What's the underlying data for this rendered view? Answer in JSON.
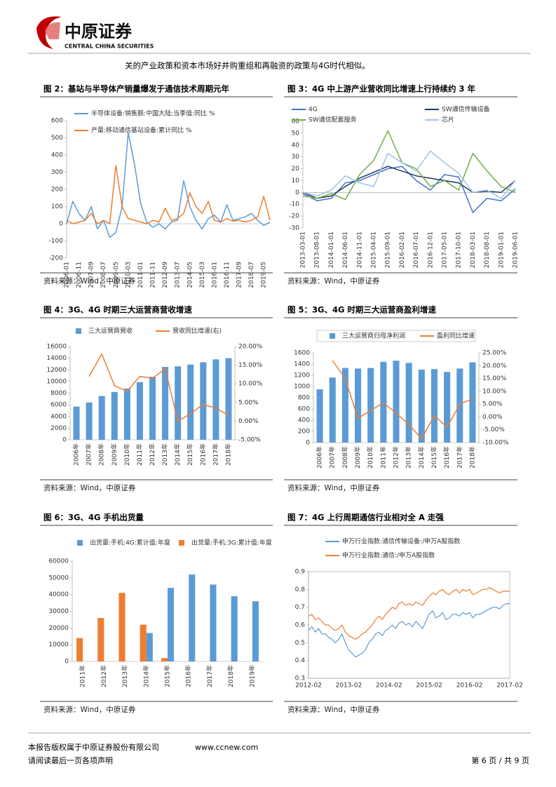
{
  "header": {
    "company": "中原证券",
    "company_en": "CENTRAL CHINA SECURITIES"
  },
  "intro": "关的产业政策和资本市场好并购重组和再融资的政策与4G时代相似。",
  "chart_data": [
    {
      "type": "line",
      "title": "图 2：基站与半导体产销量爆发于通信技术周期元年",
      "source": "资料来源：Wind，中原证券",
      "categories": [
        "2006-01",
        null,
        "2006-11",
        null,
        "2007-09",
        null,
        "2008-07",
        null,
        "2009-05",
        null,
        "2010-03",
        null,
        "2011-01",
        null,
        "2011-11",
        null,
        "2012-09",
        null,
        "2013-07",
        null,
        "2014-05",
        null,
        "2015-03",
        null,
        "2016-01",
        null,
        "2016-11",
        null,
        "2017-09",
        null,
        "2018-07",
        null,
        "2019-05",
        null
      ],
      "series": [
        {
          "name": "半导体设备:销售额:中国大陆:当季值:同比 %",
          "color": "#5b9bd5",
          "values": [
            0,
            130,
            60,
            20,
            100,
            -30,
            20,
            -80,
            -50,
            100,
            530,
            350,
            120,
            10,
            -20,
            0,
            -30,
            10,
            20,
            250,
            100,
            20,
            -30,
            30,
            50,
            10,
            110,
            20,
            30,
            40,
            60,
            20,
            -10,
            10
          ]
        },
        {
          "name": "产量:移动通信基站设备:累计同比 %",
          "color": "#ed7d31",
          "values": [
            20,
            0,
            10,
            20,
            60,
            0,
            20,
            0,
            340,
            100,
            30,
            20,
            10,
            0,
            20,
            10,
            90,
            20,
            30,
            60,
            180,
            100,
            60,
            130,
            20,
            10,
            30,
            15,
            20,
            10,
            20,
            40,
            160,
            20
          ]
        }
      ],
      "ylim": [
        -200,
        600
      ],
      "yticks": [
        -200,
        -100,
        0,
        100,
        200,
        300,
        400,
        500,
        600
      ]
    },
    {
      "type": "line",
      "title": "图 3：4G 中上游产业营收同比增速上行持续约 3 年",
      "source": "资料来源：Wind，中原证券",
      "categories": [
        "2013-03-01",
        "2013-08-01",
        "2014-01-01",
        "2014-06-01",
        "2014-11-01",
        "2015-04-01",
        "2015-09-01",
        "2016-02-01",
        "2016-07-01",
        "2016-12-01",
        "2017-05-01",
        "2017-10-01",
        "2018-03-01",
        "2018-08-01",
        "2019-01-01",
        "2019-06-01"
      ],
      "series": [
        {
          "name": "4G",
          "color": "#4472c4",
          "values": [
            -1,
            -7,
            -5,
            8,
            10,
            15,
            20,
            22,
            10,
            2,
            15,
            13,
            -17,
            -5,
            -7,
            3
          ]
        },
        {
          "name": "SW通信传输设备",
          "color": "#1f3864",
          "values": [
            0,
            -5,
            -3,
            5,
            12,
            17,
            22,
            18,
            14,
            12,
            10,
            8,
            0,
            1,
            0,
            10
          ]
        },
        {
          "name": "SW通信配套服务",
          "color": "#70ad47",
          "values": [
            -3,
            -5,
            -1,
            -6,
            15,
            27,
            52,
            25,
            20,
            5,
            10,
            2,
            33,
            18,
            5,
            0
          ]
        },
        {
          "name": "芯片",
          "color": "#9dc3e6",
          "values": [
            0,
            -3,
            2,
            14,
            8,
            5,
            33,
            25,
            18,
            35,
            25,
            16,
            0,
            2,
            -5,
            10
          ]
        }
      ],
      "ylim": [
        -30,
        60
      ],
      "yticks": [
        -30,
        -20,
        -10,
        0,
        10,
        20,
        30,
        40,
        50,
        60
      ]
    },
    {
      "type": "bar",
      "title": "图 4：3G、4G 时期三大运营商营收增速",
      "source": "资料来源：Wind，中原证券",
      "categories": [
        "2006年",
        "2007年",
        "2008年",
        "2009年",
        "2010年",
        "2011年",
        "2012年",
        "2013年",
        "2014年",
        "2015年",
        "2016年",
        "2017年",
        "2018年"
      ],
      "series": [
        {
          "name": "三大运营商营收",
          "color": "#5b9bd5",
          "values": [
            5700,
            6400,
            7500,
            8200,
            8800,
            9900,
            10800,
            12500,
            12600,
            12900,
            13300,
            13800,
            14000
          ]
        },
        {
          "name": "营收同比增速(右)",
          "color": "#ed7d31",
          "type": "line",
          "axis": "y2",
          "values": [
            null,
            12,
            18,
            9.5,
            8,
            12,
            11.5,
            14,
            0,
            2,
            4.5,
            3.5,
            1.5
          ]
        }
      ],
      "ylim": [
        0,
        16000
      ],
      "yticks": [
        0,
        2000,
        4000,
        6000,
        8000,
        10000,
        12000,
        14000,
        16000
      ],
      "y2lim": [
        -5,
        20
      ],
      "y2ticks": [
        {
          "value": -5,
          "label": "-5.00%"
        },
        {
          "value": 0,
          "label": "0.00%"
        },
        {
          "value": 5,
          "label": "5.00%"
        },
        {
          "value": 10,
          "label": "10.00%"
        },
        {
          "value": 15,
          "label": "15.00%"
        },
        {
          "value": 20,
          "label": "20.00%"
        }
      ]
    },
    {
      "type": "bar",
      "title": "图 5：3G、4G 时期三大运营商盈利增速",
      "source": "资料来源：Wind，中原证券",
      "categories": [
        "2006年",
        "2007年",
        "2008年",
        "2009年",
        "2010年",
        "2011年",
        "2012年",
        "2013年",
        "2014年",
        "2015年",
        "2016年",
        "2017年",
        "2018年"
      ],
      "series": [
        {
          "name": "三大运营商归母净利润",
          "color": "#5b9bd5",
          "values": [
            950,
            1160,
            1330,
            1320,
            1330,
            1440,
            1460,
            1420,
            1300,
            1310,
            1260,
            1320,
            1430
          ]
        },
        {
          "name": "盈利同比增速",
          "color": "#ed7d31",
          "type": "line",
          "axis": "y2",
          "values": [
            null,
            22,
            15,
            -0.5,
            2.5,
            5.5,
            1.5,
            -3,
            -8.5,
            0.5,
            -4,
            5,
            7
          ]
        }
      ],
      "ylim": [
        0,
        1600
      ],
      "yticks": [
        0,
        200,
        400,
        600,
        800,
        1000,
        1200,
        1400,
        1600
      ],
      "y2lim": [
        -10,
        25
      ],
      "y2ticks": [
        {
          "value": -10,
          "label": "-10.00%"
        },
        {
          "value": -5,
          "label": "-5.00%"
        },
        {
          "value": 0,
          "label": "0.00%"
        },
        {
          "value": 5,
          "label": "5.00%"
        },
        {
          "value": 10,
          "label": "10.00%"
        },
        {
          "value": 15,
          "label": "15.00%"
        },
        {
          "value": 20,
          "label": "20.00%"
        },
        {
          "value": 25,
          "label": "25.00%"
        }
      ]
    },
    {
      "type": "bar",
      "title": "图 6：3G、4G 手机出货量",
      "source": "资料来源：Wind，中原证券",
      "categories": [
        "2011年",
        "2012年",
        "2013年",
        "2014年",
        "2015年",
        "2016年",
        "2017年",
        "2018年",
        "2019年"
      ],
      "series": [
        {
          "name": "出货量:手机:4G:累计值:年度",
          "color": "#5b9bd5",
          "values": [
            null,
            null,
            null,
            17000,
            44000,
            52000,
            46000,
            39000,
            36000
          ]
        },
        {
          "name": "出货量:手机:3G:累计值:年度",
          "color": "#ed7d31",
          "values": [
            14000,
            26000,
            41000,
            22000,
            2000,
            null,
            null,
            null,
            null
          ]
        }
      ],
      "ylim": [
        0,
        60000
      ],
      "yticks": [
        0,
        10000,
        20000,
        30000,
        40000,
        50000,
        60000
      ]
    },
    {
      "type": "line",
      "title": "图 7：4G 上行周期通信行业相对全 A 走强",
      "source": "资料来源：Wind，中原证券",
      "categories": [
        "2012-02",
        null,
        null,
        null,
        null,
        null,
        null,
        null,
        null,
        null,
        null,
        null,
        "2013-02",
        null,
        null,
        null,
        null,
        null,
        null,
        null,
        null,
        null,
        null,
        null,
        "2014-02",
        null,
        null,
        null,
        null,
        null,
        null,
        null,
        null,
        null,
        null,
        null,
        "2015-02",
        null,
        null,
        null,
        null,
        null,
        null,
        null,
        null,
        null,
        null,
        null,
        "2016-02",
        null,
        null,
        null,
        null,
        null,
        null,
        null,
        null,
        null,
        null,
        null,
        "2017-02"
      ],
      "series": [
        {
          "name": "申万行业指数:通信传输设备:/申万A股指数",
          "color": "#5b9bd5",
          "values": [
            0.57,
            0.59,
            0.56,
            0.58,
            0.55,
            0.55,
            0.53,
            0.52,
            0.5,
            0.52,
            0.55,
            0.5,
            0.46,
            0.44,
            0.42,
            0.43,
            0.44,
            0.46,
            0.5,
            0.52,
            0.55,
            0.56,
            0.54,
            0.57,
            0.58,
            0.6,
            0.58,
            0.61,
            0.62,
            0.6,
            0.61,
            0.59,
            0.62,
            0.6,
            0.58,
            0.62,
            0.66,
            0.68,
            0.64,
            0.65,
            0.67,
            0.63,
            0.64,
            0.66,
            0.66,
            0.65,
            0.67,
            0.66,
            0.67,
            0.64,
            0.66,
            0.66,
            0.67,
            0.68,
            0.69,
            0.7,
            0.7,
            0.69,
            0.71,
            0.72,
            0.72
          ]
        },
        {
          "name": "申万行业指数:通信:/申万A股指数",
          "color": "#ed7d31",
          "values": [
            0.65,
            0.66,
            0.63,
            0.64,
            0.62,
            0.6,
            0.6,
            0.58,
            0.57,
            0.58,
            0.6,
            0.56,
            0.54,
            0.53,
            0.52,
            0.53,
            0.55,
            0.56,
            0.58,
            0.6,
            0.63,
            0.65,
            0.63,
            0.66,
            0.68,
            0.7,
            0.69,
            0.72,
            0.73,
            0.71,
            0.72,
            0.71,
            0.73,
            0.72,
            0.71,
            0.74,
            0.76,
            0.78,
            0.77,
            0.79,
            0.8,
            0.78,
            0.77,
            0.79,
            0.8,
            0.78,
            0.8,
            0.79,
            0.8,
            0.77,
            0.78,
            0.79,
            0.8,
            0.8,
            0.81,
            0.8,
            0.79,
            0.78,
            0.79,
            0.79,
            0.79
          ]
        }
      ],
      "ylim": [
        0.3,
        0.9
      ],
      "yticks": [
        0.3,
        0.4,
        0.5,
        0.6,
        0.7,
        0.8,
        0.9
      ]
    }
  ],
  "footer": {
    "copyright": "本报告版权属于中原证券股份有限公司",
    "website": "www.ccnew.com",
    "notice": "请阅读最后一页各项声明",
    "page": "第 6 页 / 共 9 页"
  }
}
